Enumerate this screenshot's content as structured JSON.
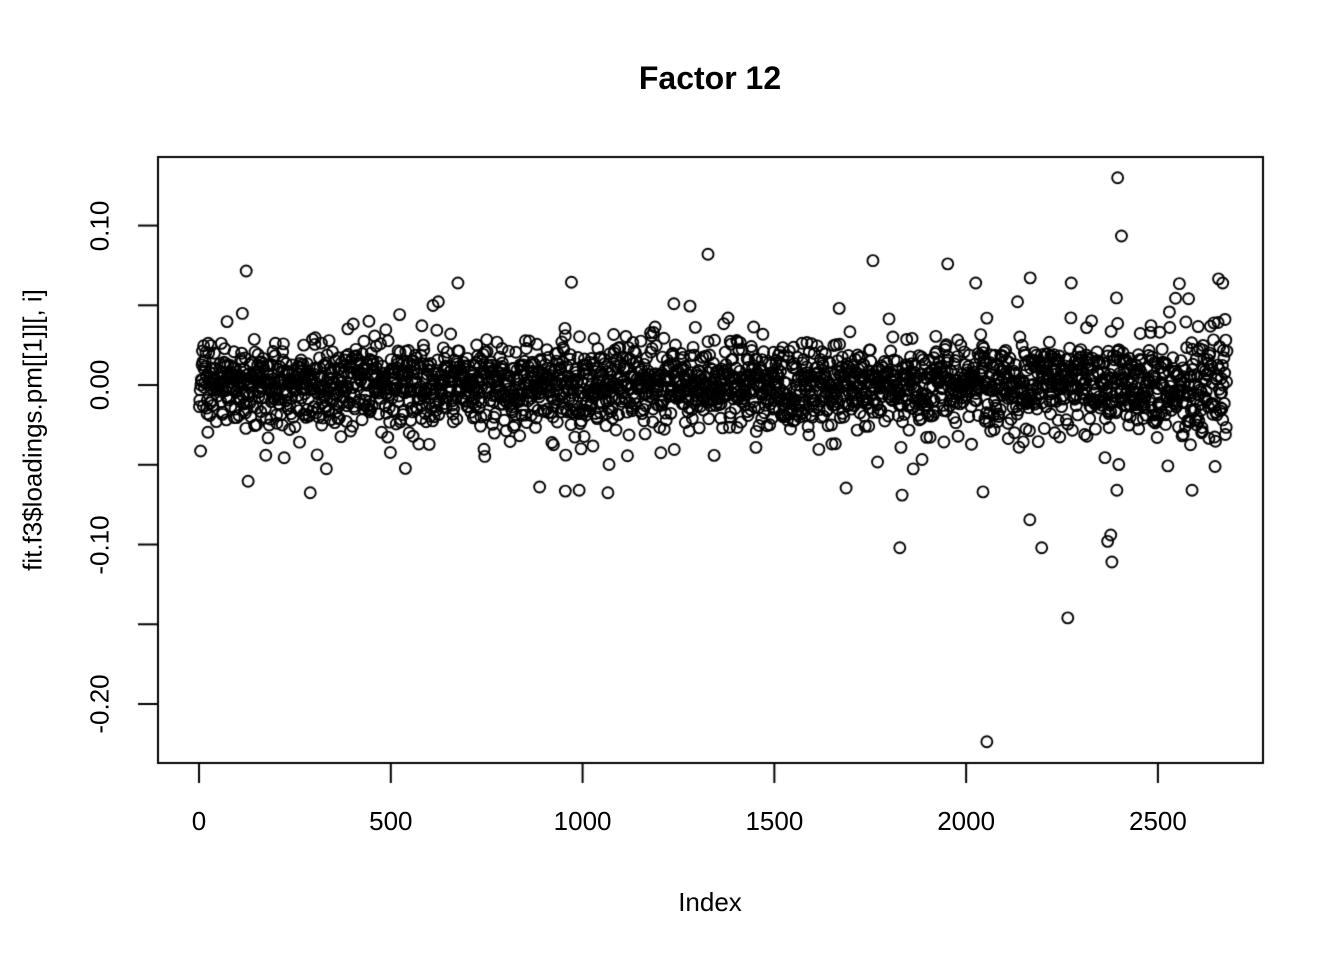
{
  "chart_data": {
    "type": "scatter",
    "title": "Factor 12",
    "xlabel": "Index",
    "ylabel": "fit.f3$loadings.pm[[1]][, i]",
    "background_color": "#ffffff",
    "point_color": "#000000",
    "grid": false,
    "legend": null,
    "n_points": 2680,
    "xlim": [
      -107,
      2774
    ],
    "ylim": [
      -0.237,
      0.143
    ],
    "x_ticks": [
      0,
      500,
      1000,
      1500,
      2000,
      2500
    ],
    "x_tick_labels": [
      "0",
      "500",
      "1000",
      "1500",
      "2000",
      "2500"
    ],
    "y_ticks": [
      0.1,
      0.05,
      0.0,
      -0.05,
      -0.1,
      -0.15,
      -0.2
    ],
    "y_tick_labels": [
      "0.10",
      "",
      "0.00",
      "",
      "-0.10",
      "",
      "-0.20"
    ],
    "point_style": {
      "shape": "open-circle",
      "radius_px": 5.5,
      "stroke_px": 1.9
    },
    "bulk_distribution": {
      "seed": 20,
      "mean": 0.0,
      "mixture": [
        {
          "weight": 0.85,
          "sd": 0.012
        },
        {
          "weight": 0.12,
          "sd": 0.023
        },
        {
          "weight": 0.03,
          "sd": 0.038
        }
      ],
      "clamp_abs": 0.068,
      "right_widen_from_x": 2480,
      "right_widen_factor": 1.45
    },
    "outliers": [
      {
        "x": 2395,
        "y": 0.13
      },
      {
        "x": 2405,
        "y": 0.0935
      },
      {
        "x": 1327,
        "y": 0.082
      },
      {
        "x": 1757,
        "y": 0.078
      },
      {
        "x": 1952,
        "y": 0.076
      },
      {
        "x": 123,
        "y": 0.0715
      },
      {
        "x": 675,
        "y": 0.064
      },
      {
        "x": 2274,
        "y": 0.064
      },
      {
        "x": 2669,
        "y": 0.064
      },
      {
        "x": 2054,
        "y": -0.2237
      },
      {
        "x": 2265,
        "y": -0.146
      },
      {
        "x": 2380,
        "y": -0.111
      },
      {
        "x": 1827,
        "y": -0.102
      },
      {
        "x": 2197,
        "y": -0.102
      },
      {
        "x": 2369,
        "y": -0.098
      },
      {
        "x": 2377,
        "y": -0.094
      },
      {
        "x": 2166,
        "y": -0.0845
      },
      {
        "x": 290,
        "y": -0.0675
      },
      {
        "x": 955,
        "y": -0.0665
      },
      {
        "x": 1066,
        "y": -0.0675
      },
      {
        "x": 1833,
        "y": -0.069
      },
      {
        "x": 2044,
        "y": -0.067
      },
      {
        "x": 2393,
        "y": -0.066
      },
      {
        "x": 2589,
        "y": -0.066
      }
    ]
  }
}
